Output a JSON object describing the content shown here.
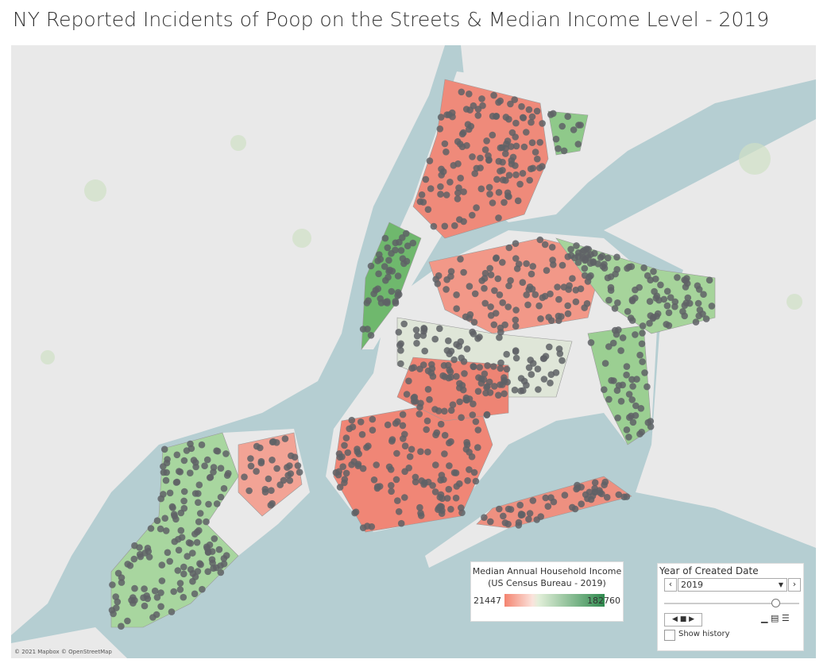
{
  "title": "NY Reported Incidents of Poop on the Streets & Median Income Level - 2019",
  "legend": {
    "title_lines": [
      "Median Annual Household Income",
      "(US Census Bureau - 2019)"
    ],
    "min": 21447,
    "max": 182760
  },
  "filter": {
    "title": "Year of Created Date",
    "selected": "2019",
    "show_history": "Show history"
  },
  "attribution": "© 2021 Mapbox © OpenStreetMap"
}
